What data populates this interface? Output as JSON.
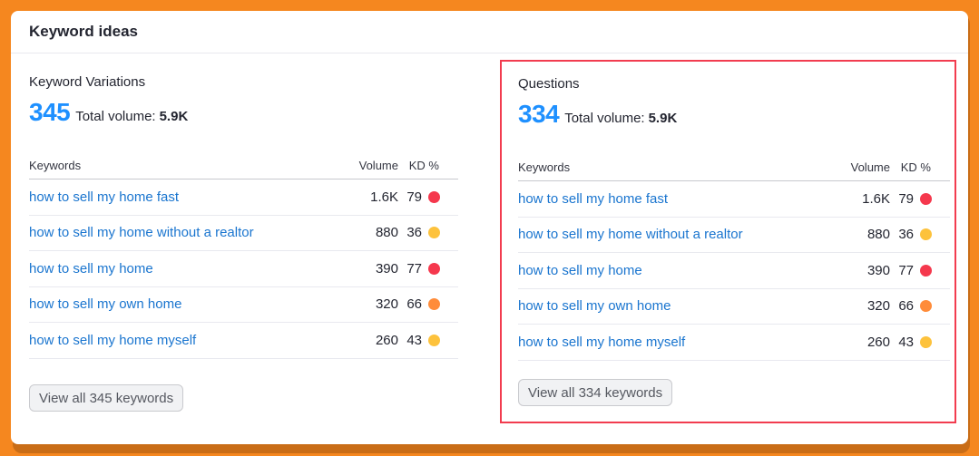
{
  "card": {
    "title": "Keyword ideas"
  },
  "colors": {
    "background": "#f5871f",
    "accent_blue": "#1e90ff",
    "link": "#1a75cf",
    "highlight_border": "#f23c4f",
    "kd_hard": "#f5384d",
    "kd_difficult": "#ff8c3a",
    "kd_possible": "#fdc23c"
  },
  "sections": [
    {
      "title": "Keyword Variations",
      "count": "345",
      "total_volume_label": "Total volume:",
      "total_volume_value": "5.9K",
      "columns": {
        "keyword": "Keywords",
        "volume": "Volume",
        "kd": "KD %"
      },
      "rows": [
        {
          "keyword": "how to sell my home fast",
          "volume": "1.6K",
          "kd": "79",
          "kd_color": "#f5384d"
        },
        {
          "keyword": "how to sell my home without a realtor",
          "volume": "880",
          "kd": "36",
          "kd_color": "#fdc23c"
        },
        {
          "keyword": "how to sell my home",
          "volume": "390",
          "kd": "77",
          "kd_color": "#f5384d"
        },
        {
          "keyword": "how to sell my own home",
          "volume": "320",
          "kd": "66",
          "kd_color": "#ff8c3a"
        },
        {
          "keyword": "how to sell my home myself",
          "volume": "260",
          "kd": "43",
          "kd_color": "#fdc23c"
        }
      ],
      "view_all_label": "View all 345 keywords"
    },
    {
      "title": "Questions",
      "count": "334",
      "total_volume_label": "Total volume:",
      "total_volume_value": "5.9K",
      "columns": {
        "keyword": "Keywords",
        "volume": "Volume",
        "kd": "KD %"
      },
      "rows": [
        {
          "keyword": "how to sell my home fast",
          "volume": "1.6K",
          "kd": "79",
          "kd_color": "#f5384d"
        },
        {
          "keyword": "how to sell my home without a realtor",
          "volume": "880",
          "kd": "36",
          "kd_color": "#fdc23c"
        },
        {
          "keyword": "how to sell my home",
          "volume": "390",
          "kd": "77",
          "kd_color": "#f5384d"
        },
        {
          "keyword": "how to sell my own home",
          "volume": "320",
          "kd": "66",
          "kd_color": "#ff8c3a"
        },
        {
          "keyword": "how to sell my home myself",
          "volume": "260",
          "kd": "43",
          "kd_color": "#fdc23c"
        }
      ],
      "view_all_label": "View all 334 keywords"
    }
  ]
}
